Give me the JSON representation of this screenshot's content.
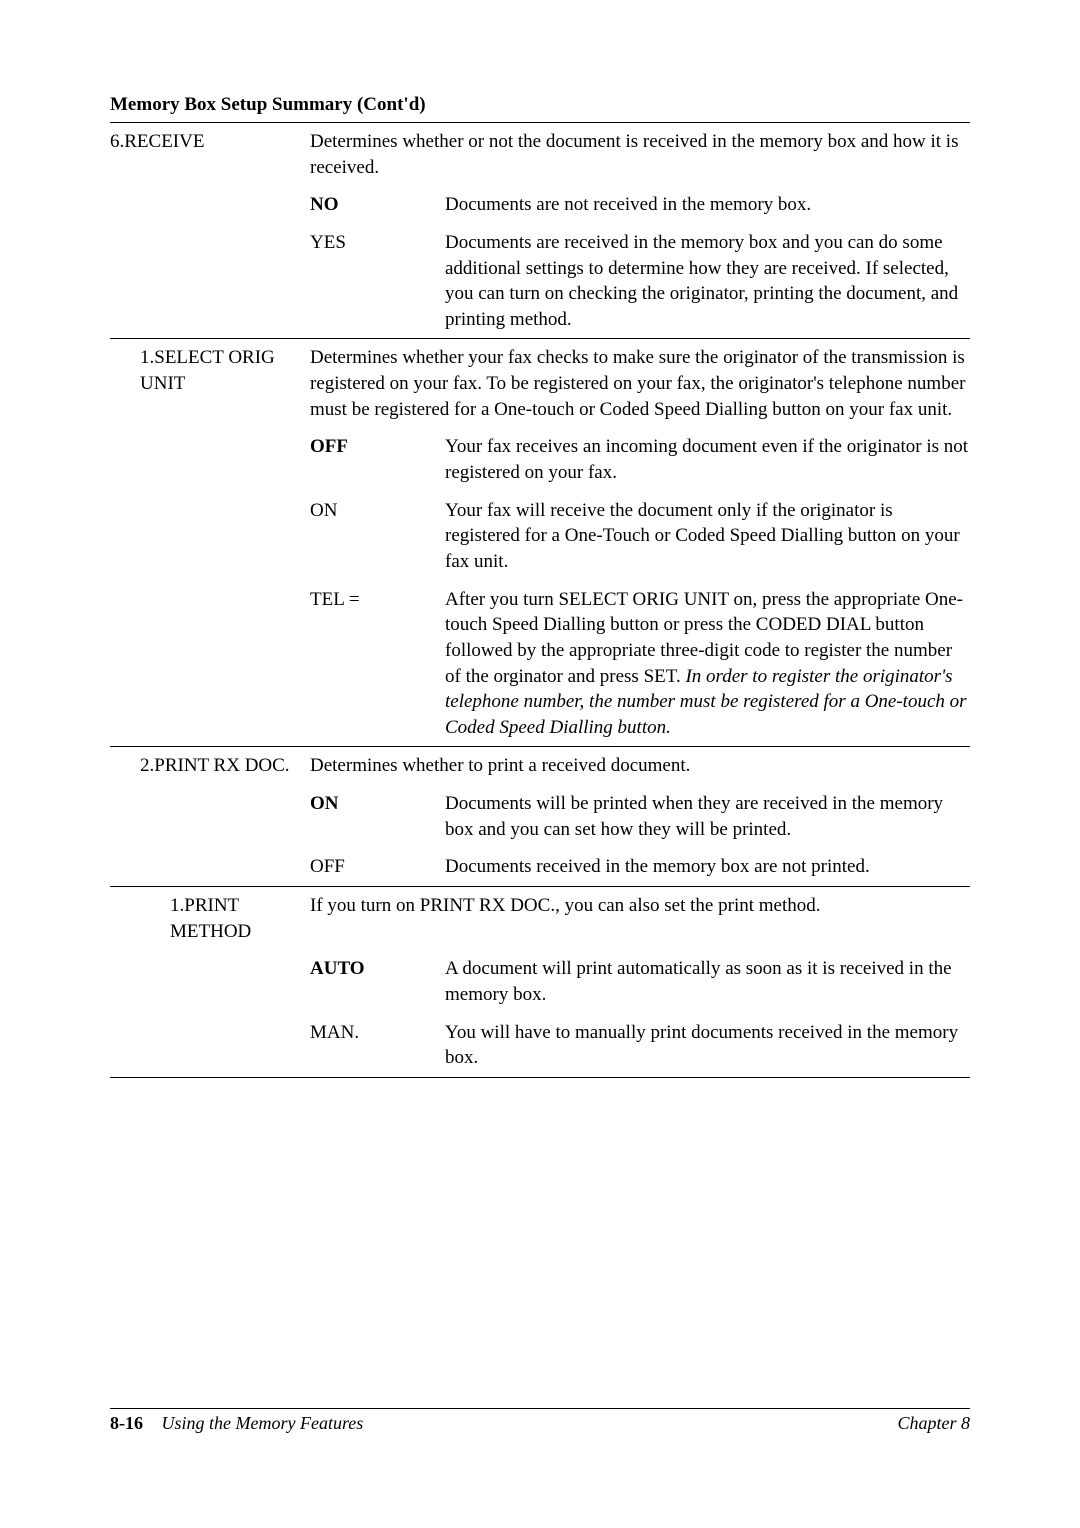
{
  "section_title": "Memory Box Setup Summary (Cont'd)",
  "rows": [
    {
      "name": "6.RECEIVE",
      "desc": "Determines whether or not the document is received in the memory box and how it is received.",
      "top_rule": true
    },
    {
      "opt": "NO",
      "opt_bold": true,
      "desc": "Documents are not received in the memory box."
    },
    {
      "opt": "YES",
      "desc": "Documents are received in the memory box and you can do some additional settings to determine how they are received. If selected, you can turn on checking the originator, printing the document, and printing method."
    },
    {
      "indent": 1,
      "name": "1.SELECT ORIG UNIT",
      "desc": "Determines whether your fax checks to make sure the originator of the transmission is registered on your fax. To be registered on your fax, the originator's telephone number must be registered for a One-touch or Coded Speed Dialling button on your fax unit.",
      "top_rule": true
    },
    {
      "indent": 1,
      "opt": "OFF",
      "opt_bold": true,
      "desc": "Your fax receives an incoming document even if the originator is not registered on your fax."
    },
    {
      "indent": 1,
      "opt": "ON",
      "desc": "Your fax will receive the document only if the originator is registered for a One-Touch or Coded Speed Dialling button on your fax unit."
    },
    {
      "indent": 1,
      "opt": "TEL =",
      "desc_html": "After you turn SELECT ORIG UNIT on, press the appropriate One-touch Speed Dialling button or press the CODED DIAL button followed by the appropriate three-digit code to register the number of the orginator and press SET. <span class=\"italic\">In order to register the originator's telephone number, the number must be registered for a One-touch or Coded Speed Dialling button.</span>"
    },
    {
      "indent": 1,
      "name": "2.PRINT RX DOC.",
      "desc": "Determines whether to print a received document.",
      "top_rule": true
    },
    {
      "indent": 1,
      "opt": "ON",
      "opt_bold": true,
      "desc": "Documents will be printed when they are received in the memory box and you can set how they will be printed."
    },
    {
      "indent": 1,
      "opt": "OFF",
      "desc": "Documents received in the memory box are not printed."
    },
    {
      "indent": 2,
      "name": "1.PRINT METHOD",
      "desc": "If you turn on PRINT RX DOC., you can also set the print method.",
      "top_rule": true
    },
    {
      "indent": 2,
      "opt": "AUTO",
      "opt_bold": true,
      "desc": "A document will print automatically as soon as it is received in the memory box."
    },
    {
      "indent": 2,
      "opt": "MAN.",
      "desc": "You will have to manually print documents received in the memory box.",
      "bottom_rule": true
    }
  ],
  "footer": {
    "page_number": "8-16",
    "section": "Using the Memory Features",
    "chapter": "Chapter 8"
  }
}
